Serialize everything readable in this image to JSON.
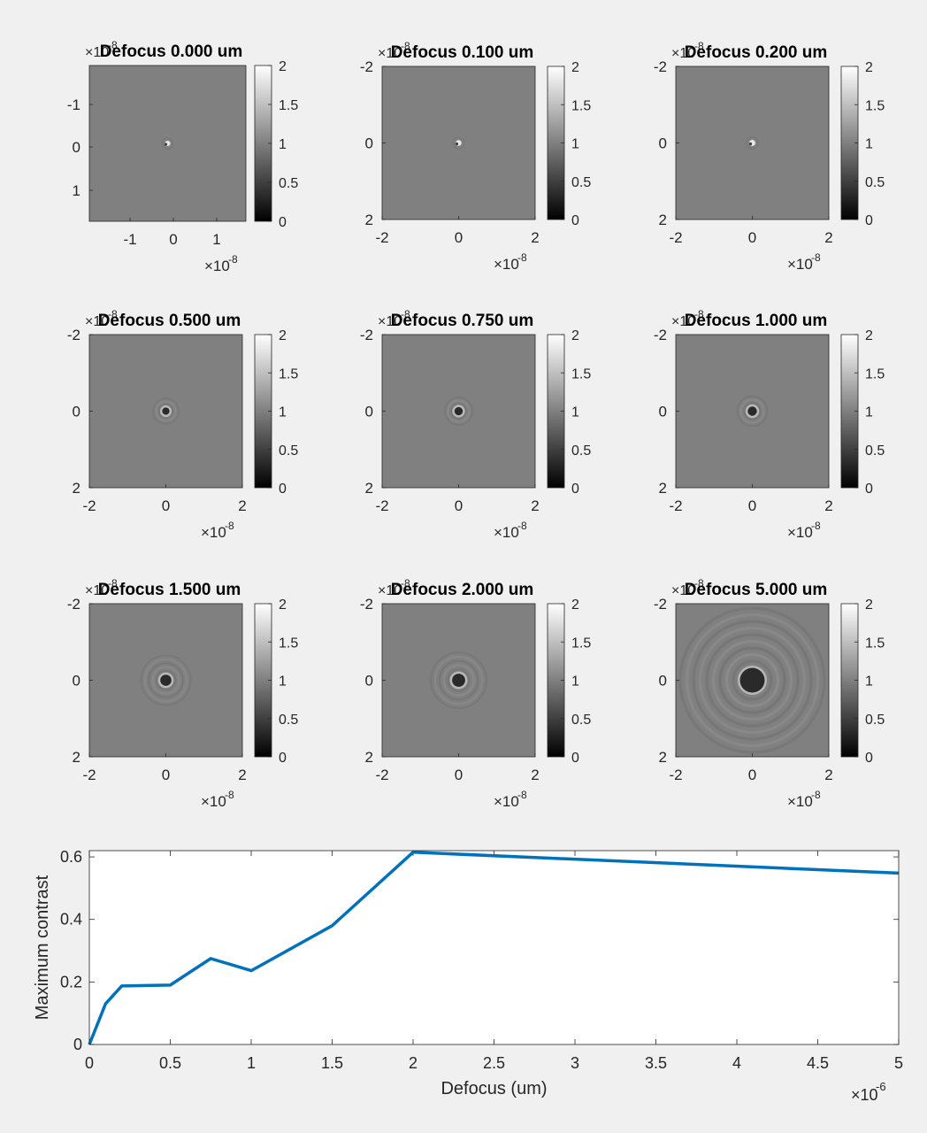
{
  "figure": {
    "background": "#f0f0f0",
    "line_color": "#0072bd"
  },
  "panels": [
    {
      "title": "Defocus    0.000 um",
      "defocus_um": 0.0,
      "x_ticks": [
        "-1",
        "0",
        "1"
      ],
      "y_ticks": [
        "-1",
        "0",
        "1"
      ],
      "x_multiplier": "×10",
      "x_exponent": "-8",
      "y_multiplier": "×10",
      "y_exponent": "-8",
      "colorbar_ticks": [
        "0",
        "0.5",
        "1",
        "1.5",
        "2"
      ],
      "clim": [
        0,
        2
      ]
    },
    {
      "title": "Defocus    0.100 um",
      "defocus_um": 0.1,
      "x_ticks": [
        "-2",
        "0",
        "2"
      ],
      "y_ticks": [
        "-2",
        "0",
        "2"
      ],
      "x_multiplier": "×10",
      "x_exponent": "-8",
      "y_multiplier": "×10",
      "y_exponent": "-8",
      "colorbar_ticks": [
        "0",
        "0.5",
        "1",
        "1.5",
        "2"
      ],
      "clim": [
        0,
        2
      ]
    },
    {
      "title": "Defocus    0.200 um",
      "defocus_um": 0.2,
      "x_ticks": [
        "-2",
        "0",
        "2"
      ],
      "y_ticks": [
        "-2",
        "0",
        "2"
      ],
      "x_multiplier": "×10",
      "x_exponent": "-8",
      "y_multiplier": "×10",
      "y_exponent": "-8",
      "colorbar_ticks": [
        "0",
        "0.5",
        "1",
        "1.5",
        "2"
      ],
      "clim": [
        0,
        2
      ]
    },
    {
      "title": "Defocus    0.500 um",
      "defocus_um": 0.5,
      "x_ticks": [
        "-2",
        "0",
        "2"
      ],
      "y_ticks": [
        "-2",
        "0",
        "2"
      ],
      "x_multiplier": "×10",
      "x_exponent": "-8",
      "y_multiplier": "×10",
      "y_exponent": "-8",
      "colorbar_ticks": [
        "0",
        "0.5",
        "1",
        "1.5",
        "2"
      ],
      "clim": [
        0,
        2
      ]
    },
    {
      "title": "Defocus    0.750 um",
      "defocus_um": 0.75,
      "x_ticks": [
        "-2",
        "0",
        "2"
      ],
      "y_ticks": [
        "-2",
        "0",
        "2"
      ],
      "x_multiplier": "×10",
      "x_exponent": "-8",
      "y_multiplier": "×10",
      "y_exponent": "-8",
      "colorbar_ticks": [
        "0",
        "0.5",
        "1",
        "1.5",
        "2"
      ],
      "clim": [
        0,
        2
      ]
    },
    {
      "title": "Defocus    1.000 um",
      "defocus_um": 1.0,
      "x_ticks": [
        "-2",
        "0",
        "2"
      ],
      "y_ticks": [
        "-2",
        "0",
        "2"
      ],
      "x_multiplier": "×10",
      "x_exponent": "-8",
      "y_multiplier": "×10",
      "y_exponent": "-8",
      "colorbar_ticks": [
        "0",
        "0.5",
        "1",
        "1.5",
        "2"
      ],
      "clim": [
        0,
        2
      ]
    },
    {
      "title": "Defocus    1.500 um",
      "defocus_um": 1.5,
      "x_ticks": [
        "-2",
        "0",
        "2"
      ],
      "y_ticks": [
        "-2",
        "0",
        "2"
      ],
      "x_multiplier": "×10",
      "x_exponent": "-8",
      "y_multiplier": "×10",
      "y_exponent": "-8",
      "colorbar_ticks": [
        "0",
        "0.5",
        "1",
        "1.5",
        "2"
      ],
      "clim": [
        0,
        2
      ]
    },
    {
      "title": "Defocus    2.000 um",
      "defocus_um": 2.0,
      "x_ticks": [
        "-2",
        "0",
        "2"
      ],
      "y_ticks": [
        "-2",
        "0",
        "2"
      ],
      "x_multiplier": "×10",
      "x_exponent": "-8",
      "y_multiplier": "×10",
      "y_exponent": "-8",
      "colorbar_ticks": [
        "0",
        "0.5",
        "1",
        "1.5",
        "2"
      ],
      "clim": [
        0,
        2
      ]
    },
    {
      "title": "Defocus    5.000 um",
      "defocus_um": 5.0,
      "x_ticks": [
        "-2",
        "0",
        "2"
      ],
      "y_ticks": [
        "-2",
        "0",
        "2"
      ],
      "x_multiplier": "×10",
      "x_exponent": "-8",
      "y_multiplier": "×10",
      "y_exponent": "-8",
      "colorbar_ticks": [
        "0",
        "0.5",
        "1",
        "1.5",
        "2"
      ],
      "clim": [
        0,
        2
      ]
    }
  ],
  "chart_data": {
    "type": "line",
    "xlabel": "Defocus (um)",
    "ylabel": "Maximum contrast",
    "x_multiplier": "×10",
    "x_exponent": "-6",
    "xlim": [
      0,
      5
    ],
    "ylim": [
      0,
      0.62
    ],
    "x_ticks": [
      "0",
      "0.5",
      "1",
      "1.5",
      "2",
      "2.5",
      "3",
      "3.5",
      "4",
      "4.5",
      "5"
    ],
    "y_ticks": [
      "0",
      "0.2",
      "0.4",
      "0.6"
    ],
    "grid": false,
    "series": [
      {
        "x": [
          0,
          0.1,
          0.2,
          0.5,
          0.75,
          1.0,
          1.5,
          2.0,
          5.0
        ],
        "y": [
          0.0,
          0.13,
          0.187,
          0.19,
          0.275,
          0.236,
          0.38,
          0.615,
          0.548
        ]
      }
    ]
  }
}
